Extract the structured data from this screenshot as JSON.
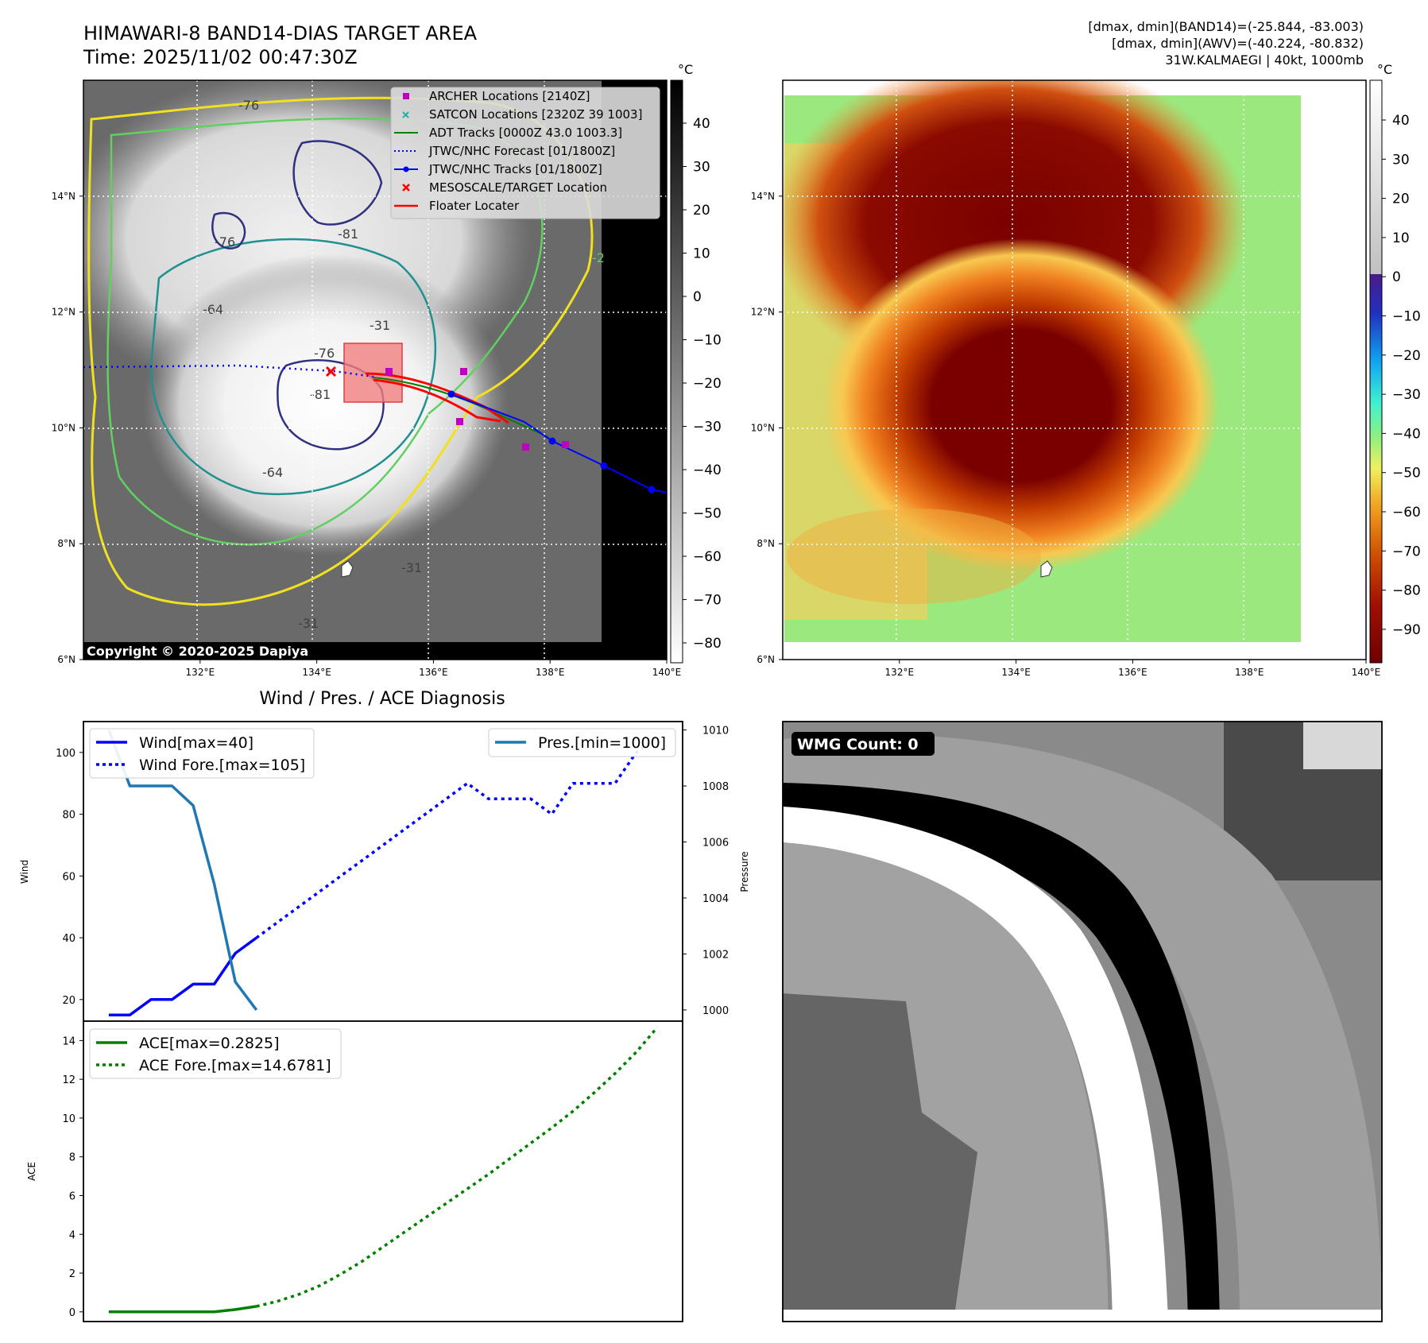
{
  "header": {
    "title": "HIMAWARI-8 BAND14-DIAS TARGET AREA",
    "time": "Time: 2025/11/02 00:47:30Z",
    "info_band14": "[dmax, dmin](BAND14)=(-25.844, -83.003)",
    "info_awv": "[dmax, dmin](AWV)=(-40.224, -80.832)",
    "info_storm": "31W.KALMAEGI | 40kt, 1000mb"
  },
  "map_axes": {
    "lon_labels": [
      "132°E",
      "134°E",
      "136°E",
      "138°E",
      "140°E"
    ],
    "lat_labels": [
      "14°N",
      "12°N",
      "10°N",
      "8°N",
      "6°N"
    ]
  },
  "ir_panel": {
    "copyright": "Copyright © 2020-2025 Dapiya",
    "colorbar_unit": "°C",
    "colorbar_ticks": [
      "40",
      "30",
      "20",
      "10",
      "0",
      "−10",
      "−20",
      "−30",
      "−40",
      "−50",
      "−60",
      "−70",
      "−80"
    ],
    "contour_labels": [
      "-76",
      "-81",
      "-64",
      "-76",
      "-81",
      "-64",
      "-31",
      "-31",
      "-31",
      "-2",
      "-76"
    ],
    "legend": [
      {
        "label": "ARCHER Locations [2140Z]",
        "color": "#c000c0",
        "marker": "square"
      },
      {
        "label": "SATCON Locations [2320Z 39 1003]",
        "color": "#20b0a0",
        "marker": "x"
      },
      {
        "label": "ADT Tracks [0000Z 43.0 1003.3]",
        "color": "#008000",
        "marker": "line"
      },
      {
        "label": "JTWC/NHC Forecast [01/1800Z]",
        "color": "#0000ff",
        "marker": "dotted"
      },
      {
        "label": "JTWC/NHC Tracks [01/1800Z]",
        "color": "#0000ff",
        "marker": "line-dot"
      },
      {
        "label": "MESOSCALE/TARGET Location",
        "color": "#ff0000",
        "marker": "x"
      },
      {
        "label": "Floater Locater",
        "color": "#ff0000",
        "marker": "line"
      }
    ]
  },
  "awv_panel": {
    "colorbar_unit": "°C",
    "colorbar_ticks": [
      "40",
      "30",
      "20",
      "10",
      "0",
      "−10",
      "−20",
      "−30",
      "−40",
      "−50",
      "−60",
      "−70",
      "−80",
      "−90"
    ]
  },
  "wmg_panel": {
    "label": "WMG Count: 0"
  },
  "chart_data": [
    {
      "type": "line",
      "title": "Wind / Pres. / ACE Diagnosis",
      "xlabel": "",
      "ylabel": "Wind",
      "ylim": [
        13,
        110
      ],
      "y_ticks": [
        20,
        40,
        60,
        80,
        100
      ],
      "y2label": "Pressure",
      "y2lim": [
        999.6,
        1010.3
      ],
      "y2_ticks": [
        1000,
        1002,
        1004,
        1006,
        1008,
        1010
      ],
      "x": [
        0,
        1,
        2,
        3,
        4,
        5,
        6,
        7,
        8,
        9,
        10,
        11,
        12,
        13,
        14,
        15,
        16,
        17,
        18,
        19,
        20,
        21,
        22,
        23,
        24,
        25,
        26
      ],
      "series": [
        {
          "name": "Wind[max=40]",
          "axis": "left",
          "style": "solid",
          "color": "#0000ff",
          "x": [
            0,
            1,
            2,
            3,
            4,
            5,
            6,
            7
          ],
          "values": [
            15,
            15,
            20,
            20,
            25,
            25,
            35,
            40
          ]
        },
        {
          "name": "Wind Fore.[max=105]",
          "axis": "left",
          "style": "dotted",
          "color": "#0000ff",
          "x": [
            7,
            8,
            9,
            10,
            11,
            12,
            13,
            14,
            15,
            16,
            17,
            18,
            19,
            20,
            21,
            22,
            23,
            24,
            25,
            26
          ],
          "values": [
            40,
            45,
            50,
            55,
            60,
            65,
            70,
            75,
            80,
            85,
            90,
            85,
            85,
            85,
            80,
            90,
            90,
            90,
            100,
            105
          ]
        },
        {
          "name": "Pres.[min=1000]",
          "axis": "right",
          "style": "solid",
          "color": "#1f77b4",
          "x": [
            0,
            1,
            2,
            3,
            4,
            5,
            6,
            7
          ],
          "values": [
            1010,
            1008,
            1008,
            1008,
            1007.3,
            1004.5,
            1001,
            1000
          ]
        }
      ]
    },
    {
      "type": "line",
      "title": "",
      "xlabel": "",
      "ylabel": "ACE",
      "ylim": [
        -0.5,
        15.0
      ],
      "y_ticks": [
        0,
        2,
        4,
        6,
        8,
        10,
        12,
        14
      ],
      "x": [
        0,
        1,
        2,
        3,
        4,
        5,
        6,
        7,
        8,
        9,
        10,
        11,
        12,
        13,
        14,
        15,
        16,
        17,
        18,
        19,
        20,
        21,
        22,
        23,
        24,
        25,
        26
      ],
      "series": [
        {
          "name": "ACE[max=0.2825]",
          "style": "solid",
          "color": "#008000",
          "x": [
            0,
            1,
            2,
            3,
            4,
            5,
            6,
            7
          ],
          "values": [
            0,
            0,
            0,
            0,
            0,
            0,
            0.12,
            0.2825
          ]
        },
        {
          "name": "ACE Fore.[max=14.6781]",
          "style": "dotted",
          "color": "#008000",
          "x": [
            7,
            8,
            9,
            10,
            11,
            12,
            13,
            14,
            15,
            16,
            17,
            18,
            19,
            20,
            21,
            22,
            23,
            24,
            25,
            26
          ],
          "values": [
            0.2825,
            0.55,
            0.9,
            1.35,
            1.95,
            2.6,
            3.35,
            4.1,
            4.85,
            5.6,
            6.35,
            7.1,
            7.9,
            8.7,
            9.5,
            10.35,
            11.3,
            12.3,
            13.4,
            14.6781
          ]
        }
      ]
    }
  ]
}
